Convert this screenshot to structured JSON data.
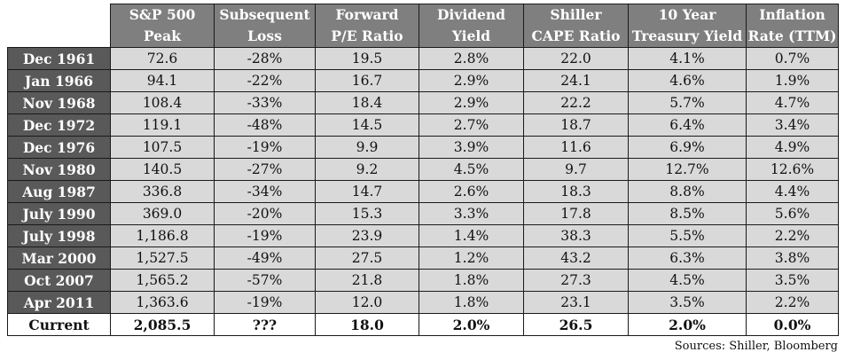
{
  "table": {
    "headers": [
      [
        "S&P 500",
        "Peak"
      ],
      [
        "Subsequent",
        "Loss"
      ],
      [
        "Forward",
        "P/E Ratio"
      ],
      [
        "Dividend",
        "Yield"
      ],
      [
        "Shiller",
        "CAPE Ratio"
      ],
      [
        "10 Year",
        "Treasury Yield"
      ],
      [
        "Inflation",
        "Rate (TTM)"
      ]
    ],
    "rows": [
      [
        "Dec 1961",
        "72.6",
        "-28%",
        "19.5",
        "2.8%",
        "22.0",
        "4.1%",
        "0.7%"
      ],
      [
        "Jan 1966",
        "94.1",
        "-22%",
        "16.7",
        "2.9%",
        "24.1",
        "4.6%",
        "1.9%"
      ],
      [
        "Nov 1968",
        "108.4",
        "-33%",
        "18.4",
        "2.9%",
        "22.2",
        "5.7%",
        "4.7%"
      ],
      [
        "Dec 1972",
        "119.1",
        "-48%",
        "14.5",
        "2.7%",
        "18.7",
        "6.4%",
        "3.4%"
      ],
      [
        "Dec 1976",
        "107.5",
        "-19%",
        "9.9",
        "3.9%",
        "11.6",
        "6.9%",
        "4.9%"
      ],
      [
        "Nov 1980",
        "140.5",
        "-27%",
        "9.2",
        "4.5%",
        "9.7",
        "12.7%",
        "12.6%"
      ],
      [
        "Aug 1987",
        "336.8",
        "-34%",
        "14.7",
        "2.6%",
        "18.3",
        "8.8%",
        "4.4%"
      ],
      [
        "July 1990",
        "369.0",
        "-20%",
        "15.3",
        "3.3%",
        "17.8",
        "8.5%",
        "5.6%"
      ],
      [
        "July 1998",
        "1,186.8",
        "-19%",
        "23.9",
        "1.4%",
        "38.3",
        "5.5%",
        "2.2%"
      ],
      [
        "Mar 2000",
        "1,527.5",
        "-49%",
        "27.5",
        "1.2%",
        "43.2",
        "6.3%",
        "3.8%"
      ],
      [
        "Oct 2007",
        "1,565.2",
        "-57%",
        "21.8",
        "1.8%",
        "27.3",
        "4.5%",
        "3.5%"
      ],
      [
        "Apr 2011",
        "1,363.6",
        "-19%",
        "12.0",
        "1.8%",
        "23.1",
        "3.5%",
        "2.2%"
      ]
    ],
    "current": [
      "Current",
      "2,085.5",
      "???",
      "18.0",
      "2.0%",
      "26.5",
      "2.0%",
      "0.0%"
    ]
  },
  "source": "Sources: Shiller, Bloomberg"
}
